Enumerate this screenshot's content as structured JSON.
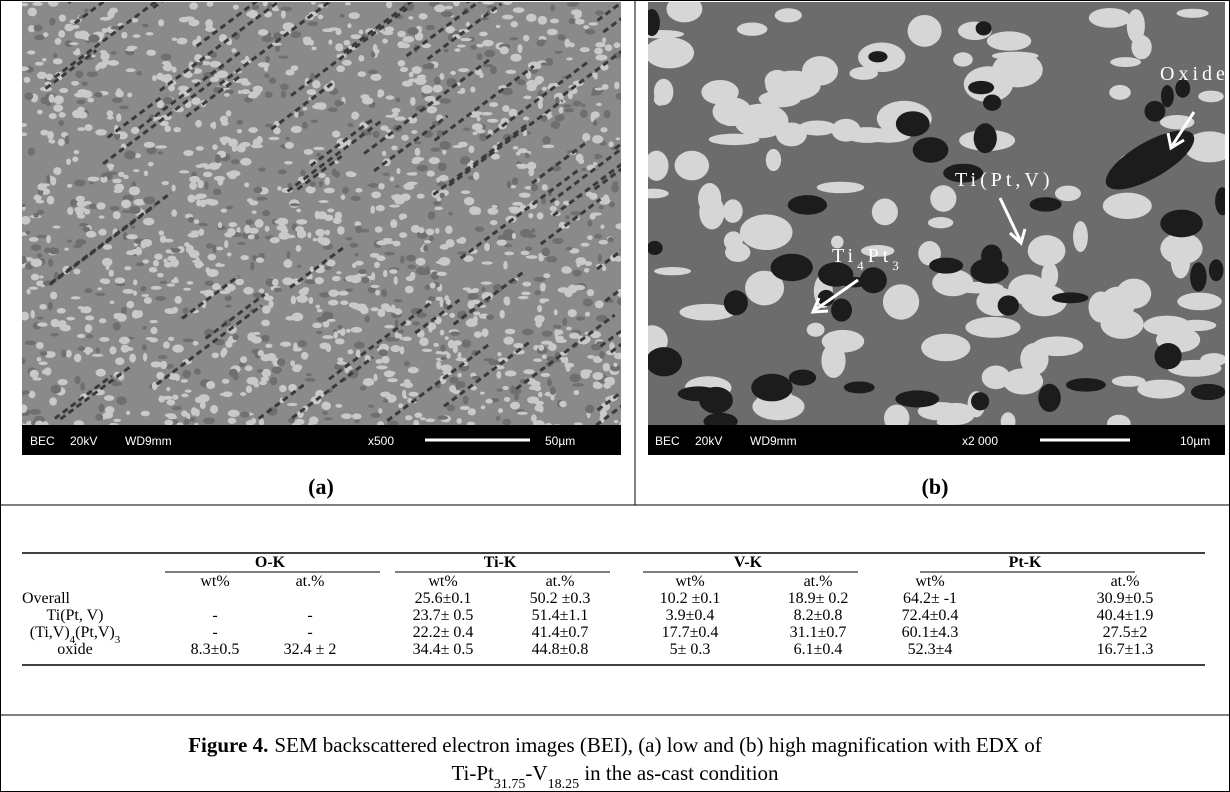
{
  "panels": [
    {
      "label": "(a)",
      "info": [
        "BEC",
        "20kV",
        "WD9mm",
        "x500",
        "50µm"
      ]
    },
    {
      "label": "(b)",
      "info": [
        "BEC",
        "20kV",
        "WD9mm",
        "x2 000",
        "10µm"
      ],
      "annotations": [
        [
          "Oxide"
        ],
        [
          "Ti(Pt,V)"
        ],
        [
          "Ti",
          "4",
          "Pt",
          "3"
        ]
      ]
    }
  ],
  "table": {
    "groups": [
      "O-K",
      "Ti-K",
      "V-K",
      "Pt-K"
    ],
    "subheaders": [
      "wt%",
      "at.%",
      "wt%",
      "at.%",
      "wt%",
      "at.%",
      "wt%",
      "at.%"
    ],
    "rows": [
      {
        "label": [
          "Overall"
        ],
        "cells": [
          null,
          null,
          "25.6±0.1",
          "50.2 ±0.3",
          "10.2 ±0.1",
          "18.9± 0.2",
          "64.2± -1",
          "30.9±0.5"
        ]
      },
      {
        "label": [
          "Ti(Pt, V)"
        ],
        "cells": [
          "-",
          "-",
          "23.7±   0.5",
          "51.4±1.1",
          "3.9±0.4",
          "8.2±0.8",
          "72.4±0.4",
          "40.4±1.9"
        ]
      },
      {
        "label": [
          "(Ti,V)",
          "4",
          "(Pt,V)",
          "3"
        ],
        "cells": [
          "-",
          "-",
          "22.2± 0.4",
          "41.4±0.7",
          "17.7±0.4",
          "31.1±0.7",
          "60.1±4.3",
          "27.5±2"
        ]
      },
      {
        "label": [
          "oxide"
        ],
        "cells": [
          "8.3±0.5",
          "32.4 ± 2",
          "34.4± 0.5",
          "44.8±0.8",
          "5± 0.3",
          "6.1±0.4",
          "52.3±4",
          "16.7±1.3"
        ]
      }
    ]
  },
  "caption": {
    "label": "Figure 4.",
    "line1": "SEM backscattered electron images (BEI), (a) low and (b) high magnification with EDX of",
    "line2": [
      "Ti-Pt",
      "31.75",
      "-V",
      "18.25",
      " in the as-cast condition"
    ]
  }
}
